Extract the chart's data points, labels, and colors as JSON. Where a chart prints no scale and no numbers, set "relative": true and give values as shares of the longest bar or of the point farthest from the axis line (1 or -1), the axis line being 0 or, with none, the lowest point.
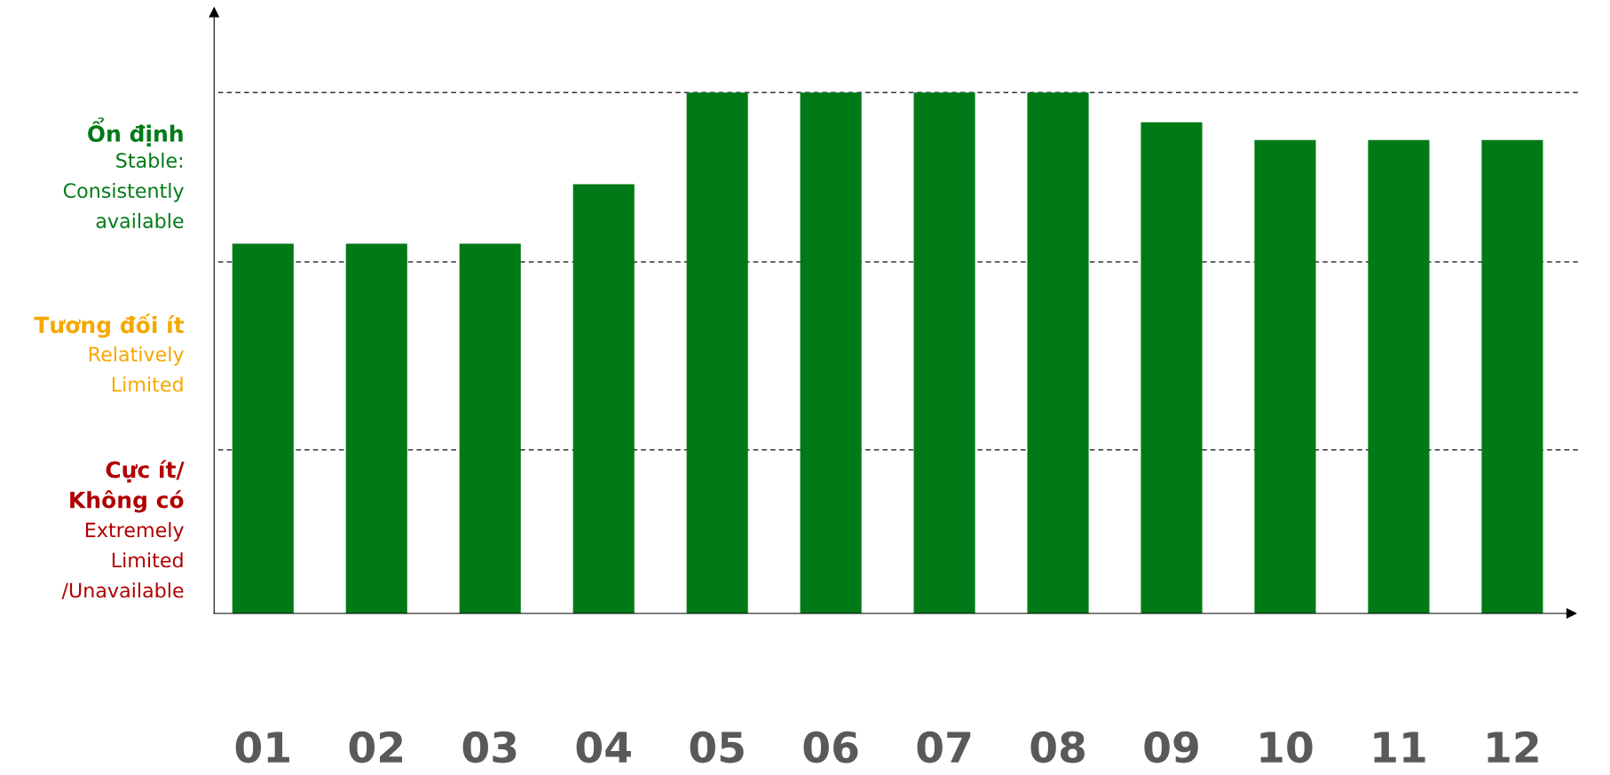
{
  "chart_data": {
    "type": "bar",
    "relative": true,
    "categories": [
      "01",
      "02",
      "03",
      "04",
      "05",
      "06",
      "07",
      "08",
      "09",
      "10",
      "11",
      "12"
    ],
    "values": [
      0.71,
      0.71,
      0.71,
      0.824,
      1.0,
      1.0,
      1.0,
      1.0,
      0.943,
      0.909,
      0.909,
      0.909
    ],
    "color": "#007a16",
    "grid": false,
    "ref_lines": [
      {
        "axis": "y",
        "value": 1.0,
        "line_style": "dashed",
        "color": "#333333"
      },
      {
        "axis": "y",
        "value": 0.675,
        "line_style": "dashed",
        "color": "#333333"
      },
      {
        "axis": "y",
        "value": 0.314,
        "line_style": "dashed",
        "color": "#333333"
      }
    ],
    "annotations": [
      "Ổn định\nStable:\nConsistently\navailable",
      "Tương đối ít\nRelatively\nLimited",
      "Cực ít/\nKhông có\nExtremely\nLimited\n/Unavailable"
    ]
  }
}
